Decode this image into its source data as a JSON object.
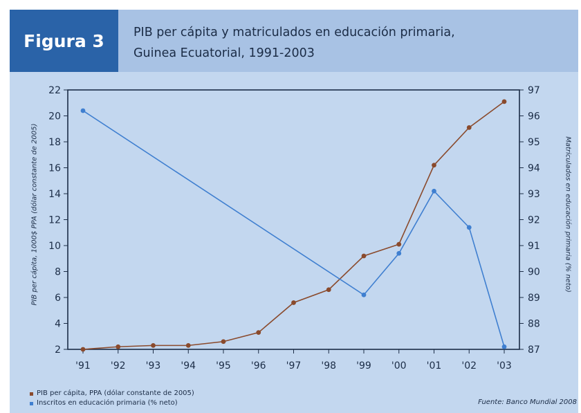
{
  "figure": {
    "label": "Figura 3",
    "title_line1": "PIB per cápita y matriculados en educación primaria,",
    "title_line2": "Guinea Ecuatorial, 1991-2003",
    "source": "Fuente: Banco Mundial 2008"
  },
  "colors": {
    "header_dark": "#2a63a8",
    "header_light": "#a8c2e4",
    "panel": "#c3d7ef",
    "series_pib": "#8a4a2c",
    "series_inscritos": "#3f7fd0"
  },
  "chart_data": {
    "type": "line",
    "categories": [
      "'91",
      "'92",
      "'93",
      "'94",
      "'95",
      "'96",
      "'97",
      "'98",
      "'99",
      "'00",
      "'01",
      "'02",
      "'03"
    ],
    "series": [
      {
        "name": "PIB per cápita, PPA (dólar constante de 2005)",
        "axis": "left",
        "values": [
          2.0,
          2.2,
          2.3,
          2.3,
          2.6,
          3.3,
          5.6,
          6.6,
          9.2,
          10.1,
          16.2,
          19.1,
          21.1
        ]
      },
      {
        "name": "Inscritos en educación primaria (% neto)",
        "axis": "right",
        "values": [
          96.2,
          null,
          null,
          null,
          null,
          null,
          null,
          null,
          89.1,
          90.7,
          93.1,
          91.7,
          87.1
        ]
      }
    ],
    "ylabel_left": "PIB per cápita, 1000$ PPA (dólar constante de 2005)",
    "ylabel_right": "Matriculados en educación primaria (% neto)",
    "ylim_left": [
      2,
      22
    ],
    "ylim_right": [
      87,
      97
    ],
    "yticks_left": [
      "2",
      "4",
      "6",
      "8",
      "10",
      "12",
      "14",
      "16",
      "18",
      "20",
      "22"
    ],
    "yticks_right": [
      "87",
      "88",
      "89",
      "90",
      "91",
      "92",
      "93",
      "94",
      "95",
      "96",
      "97"
    ],
    "grid": false,
    "legend_position": "bottom-left"
  }
}
